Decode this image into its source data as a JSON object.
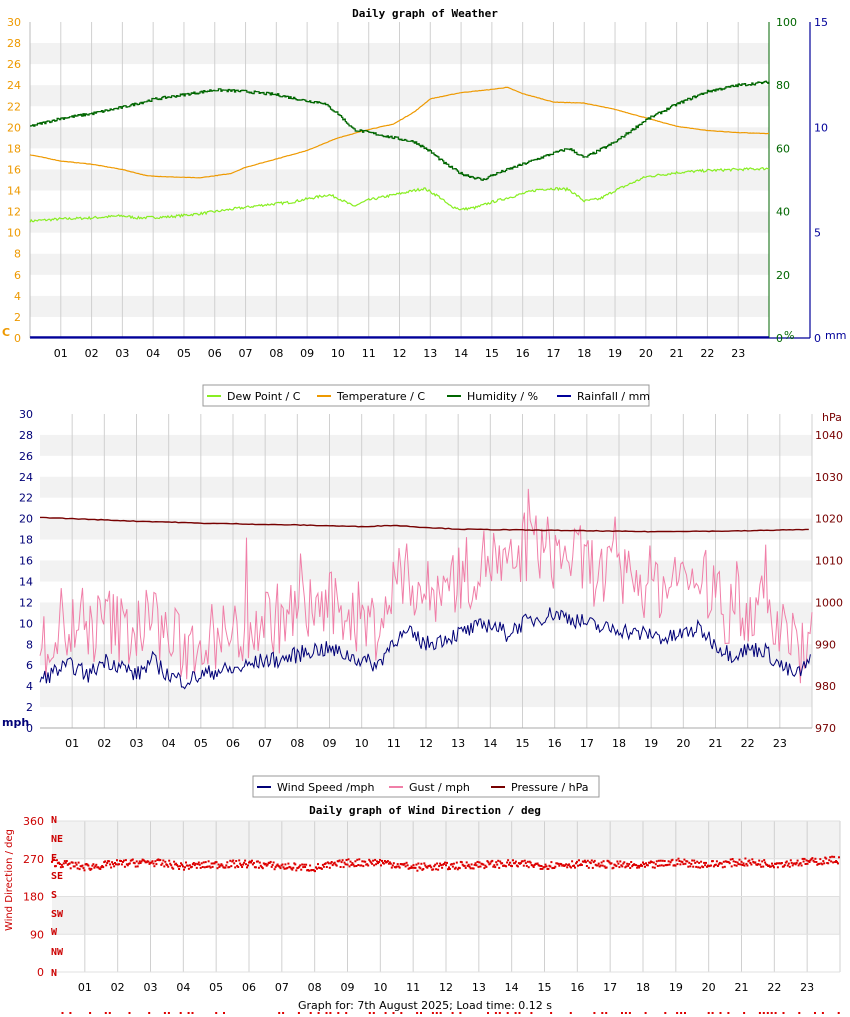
{
  "colors": {
    "dew": "#88ee22",
    "temp": "#ee9900",
    "hum": "#006600",
    "rain": "#000099",
    "wind": "#000077",
    "gust": "#f07fa8",
    "pressure": "#770000",
    "direction": "#dd0000",
    "band": "#f2f2f2",
    "grid": "#d0d0d0"
  },
  "chart1": {
    "title": "Daily graph of Weather",
    "left_unit": "C",
    "hum_unit": "%",
    "rain_unit": "mm",
    "legend": [
      "Dew Point / C",
      "Temperature / C",
      "Humidity / %",
      "Rainfall / mm"
    ],
    "temp_ticks": [
      "0",
      "2",
      "4",
      "6",
      "8",
      "10",
      "12",
      "14",
      "16",
      "18",
      "20",
      "22",
      "24",
      "26",
      "28",
      "30"
    ],
    "hum_ticks": [
      "0",
      "20",
      "40",
      "60",
      "80",
      "100"
    ],
    "rain_ticks": [
      "0",
      "5",
      "10",
      "15"
    ]
  },
  "chart2": {
    "left_unit": "mph",
    "right_unit": "hPa",
    "legend": [
      "Wind Speed /mph",
      "Gust / mph",
      "Pressure / hPa"
    ],
    "speed_ticks": [
      "0",
      "2",
      "4",
      "6",
      "8",
      "10",
      "12",
      "14",
      "16",
      "18",
      "20",
      "22",
      "24",
      "26",
      "28",
      "30"
    ],
    "pressure_ticks": [
      "970",
      "980",
      "990",
      "1000",
      "1010",
      "1020",
      "1030",
      "1040"
    ]
  },
  "chart3": {
    "title": "Daily graph of Wind Direction / deg",
    "ylabel": "Wind Direction / deg",
    "deg_ticks": [
      "0",
      "90",
      "180",
      "270",
      "360"
    ],
    "compass": [
      "N",
      "NW",
      "W",
      "SW",
      "S",
      "SE",
      "E",
      "NE",
      "N"
    ]
  },
  "hours": [
    "01",
    "02",
    "03",
    "04",
    "05",
    "06",
    "07",
    "08",
    "09",
    "10",
    "11",
    "12",
    "13",
    "14",
    "15",
    "16",
    "17",
    "18",
    "19",
    "20",
    "21",
    "22",
    "23"
  ],
  "footer": "Graph for: 7th August 2025; Load time: 0.12 s",
  "chart_data": [
    {
      "type": "line",
      "title": "Daily graph of Weather",
      "x_label": "hour",
      "x_range": [
        0,
        24
      ],
      "axes": {
        "temperature_C": [
          0,
          30
        ],
        "humidity_pct": [
          0,
          100
        ],
        "rainfall_mm": [
          0,
          15
        ]
      },
      "grid": true,
      "legend_placement": "bottom",
      "series": [
        {
          "name": "Temperature / C",
          "axis": "temperature_C",
          "x": [
            0,
            1,
            2,
            3,
            3.8,
            4.5,
            5.5,
            6.5,
            7,
            8,
            9,
            9.5,
            10,
            11,
            11.8,
            12.5,
            13,
            14,
            15,
            15.5,
            16,
            17,
            18,
            19,
            20,
            21,
            22,
            23,
            24
          ],
          "y": [
            17.4,
            16.8,
            16.5,
            16,
            15.4,
            15.3,
            15.2,
            15.6,
            16.2,
            17,
            17.8,
            18.4,
            19,
            19.8,
            20.3,
            21.5,
            22.7,
            23.3,
            23.6,
            23.8,
            23.2,
            22.4,
            22.3,
            21.7,
            20.9,
            20.1,
            19.7,
            19.5,
            19.4
          ]
        },
        {
          "name": "Dew Point / C",
          "axis": "temperature_C",
          "x": [
            0,
            1,
            2,
            3,
            3.5,
            4.5,
            5.5,
            6.5,
            7.5,
            8.5,
            9,
            9.7,
            10,
            10.5,
            11,
            12,
            12.8,
            13.3,
            13.6,
            14,
            14.5,
            15,
            16,
            16.5,
            17,
            17.5,
            18,
            18.5,
            19,
            20,
            21,
            22,
            23,
            24
          ],
          "y": [
            11.1,
            11.3,
            11.4,
            11.6,
            11.4,
            11.5,
            11.8,
            12.2,
            12.6,
            12.9,
            13.2,
            13.6,
            13.3,
            12.5,
            13.1,
            13.7,
            14.2,
            13.4,
            12.6,
            12.2,
            12.4,
            12.9,
            13.7,
            14.1,
            14.2,
            14.1,
            13.0,
            13.2,
            14.0,
            15.3,
            15.7,
            15.9,
            16.0,
            16.1
          ]
        },
        {
          "name": "Humidity / %",
          "axis": "humidity_pct",
          "x": [
            0,
            1,
            2,
            3,
            4,
            5,
            6,
            7,
            8,
            9,
            9.5,
            10,
            10.5,
            11,
            12,
            12.5,
            13,
            13.5,
            14,
            14.7,
            15,
            16,
            17,
            17.5,
            18,
            19,
            20,
            21,
            22,
            23,
            24
          ],
          "y": [
            67,
            69.5,
            71,
            73,
            75.5,
            77,
            78.5,
            78,
            77,
            75,
            74.5,
            71,
            66,
            65,
            63,
            62,
            59,
            55,
            52,
            50,
            51.5,
            55,
            58.5,
            60,
            57,
            62,
            69,
            74,
            78,
            80,
            81
          ]
        },
        {
          "name": "Rainfall / mm",
          "axis": "rainfall_mm",
          "x": [
            0,
            24
          ],
          "y": [
            0,
            0
          ]
        }
      ]
    },
    {
      "type": "line",
      "title": "",
      "x_label": "hour",
      "x_range": [
        0,
        24
      ],
      "axes": {
        "speed_mph": [
          0,
          30
        ],
        "pressure_hPa": [
          970,
          1045
        ]
      },
      "grid": true,
      "legend_placement": "bottom",
      "series": [
        {
          "name": "Wind Speed /mph",
          "axis": "speed_mph",
          "x": [
            0,
            0.5,
            1,
            1.5,
            2,
            2.5,
            3,
            3.5,
            4,
            4.5,
            5,
            5.5,
            6,
            6.5,
            7,
            7.5,
            8,
            8.5,
            9,
            9.5,
            10,
            10.5,
            11,
            11.5,
            12,
            12.5,
            13,
            13.5,
            14,
            14.5,
            15,
            15.5,
            16,
            16.5,
            17,
            17.5,
            18,
            18.5,
            19,
            19.5,
            20,
            20.5,
            21,
            21.5,
            22,
            22.5,
            23,
            23.5,
            24
          ],
          "y": [
            4.5,
            5.5,
            6,
            5,
            6.5,
            6,
            5,
            6.5,
            5,
            4.5,
            5,
            5.5,
            5.5,
            6,
            6.5,
            6.5,
            7,
            7.5,
            7.5,
            7,
            6.5,
            6,
            8.5,
            9,
            8,
            8.5,
            9,
            9.5,
            10,
            9,
            10,
            10.5,
            11,
            10.5,
            10,
            9.5,
            9.5,
            9,
            9,
            8.5,
            9,
            9.5,
            8,
            7,
            7.5,
            7.5,
            6,
            5,
            6.5
          ]
        },
        {
          "name": "Gust / mph",
          "axis": "speed_mph",
          "x": [
            0,
            0.5,
            1,
            1.5,
            2,
            2.5,
            3,
            3.5,
            4,
            4.5,
            5,
            5.5,
            6,
            6.5,
            7,
            7.5,
            8,
            8.5,
            9,
            9.5,
            10,
            10.5,
            11,
            11.5,
            12,
            12.5,
            13,
            13.5,
            14,
            14.5,
            15,
            15.5,
            16,
            16.5,
            17,
            17.5,
            18,
            18.5,
            19,
            19.5,
            20,
            20.5,
            21,
            21.5,
            22,
            22.5,
            23,
            23.5,
            24
          ],
          "y": [
            8,
            9,
            10,
            9,
            11,
            10,
            10,
            11,
            9,
            8,
            9,
            9,
            9.5,
            10,
            11,
            11,
            11.5,
            12,
            12,
            11.5,
            11,
            10,
            14,
            15,
            13,
            14,
            15,
            15.5,
            17,
            15,
            17,
            18,
            17,
            17,
            16,
            15,
            15,
            14.5,
            14.5,
            14,
            14.5,
            15,
            13,
            11,
            12,
            12,
            10,
            8,
            9
          ]
        },
        {
          "name": "Pressure / hPa",
          "axis": "pressure_hPa",
          "x": [
            0,
            1,
            2,
            3,
            4,
            5,
            6,
            7,
            8,
            9,
            10,
            11,
            12,
            13,
            14,
            15,
            16,
            17,
            18,
            19,
            20,
            21,
            22,
            23,
            24
          ],
          "y": [
            1020.3,
            1020,
            1019.7,
            1019.4,
            1019.2,
            1018.9,
            1018.8,
            1018.6,
            1018.5,
            1018.3,
            1018.1,
            1018.4,
            1017.9,
            1017.5,
            1017.4,
            1017.3,
            1017.2,
            1017.1,
            1017.0,
            1016.9,
            1017.0,
            1017.0,
            1017.1,
            1017.3,
            1017.4
          ]
        }
      ]
    },
    {
      "type": "scatter",
      "title": "Daily graph of Wind Direction / deg",
      "y_label": "Wind Direction / deg",
      "x_range": [
        0,
        24
      ],
      "y_range": [
        0,
        360
      ],
      "grid": true,
      "series": [
        {
          "name": "",
          "x": [
            0,
            1,
            2,
            3,
            4,
            5,
            6,
            7,
            8,
            9,
            10,
            11,
            12,
            13,
            14,
            15,
            16,
            17,
            18,
            19,
            20,
            21,
            22,
            23,
            24
          ],
          "y": [
            262,
            250,
            258,
            262,
            252,
            256,
            258,
            252,
            248,
            260,
            262,
            250,
            252,
            256,
            258,
            254,
            258,
            256,
            252,
            262,
            256,
            262,
            258,
            262,
            268
          ]
        }
      ]
    }
  ]
}
